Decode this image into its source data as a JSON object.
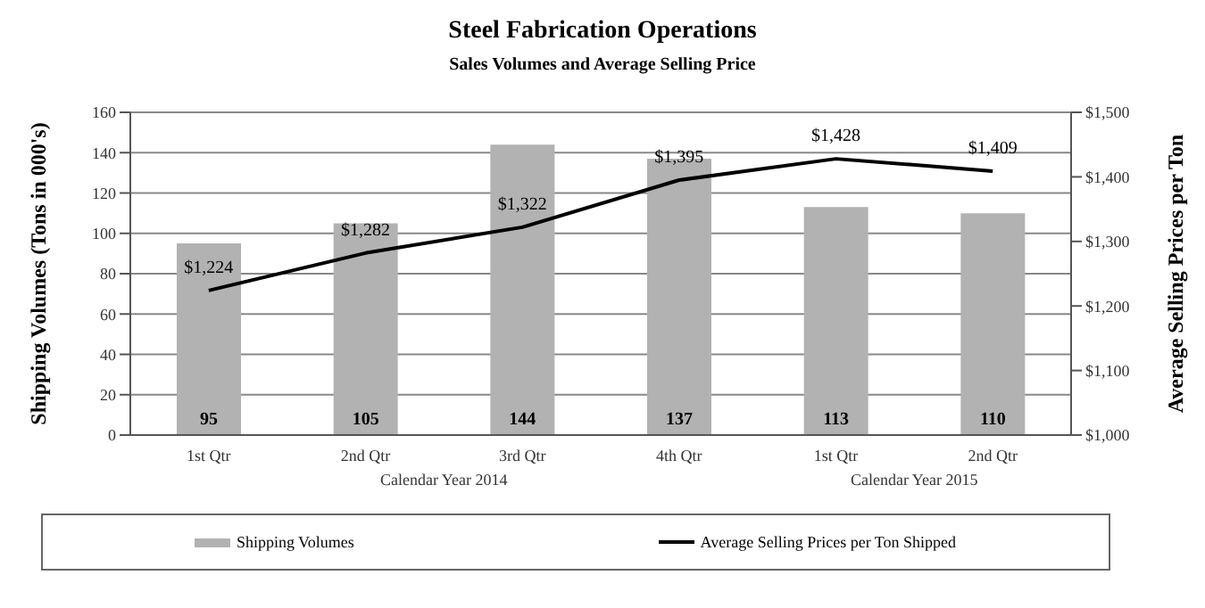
{
  "chart_data": {
    "type": "bar",
    "title": "Steel Fabrication Operations",
    "subtitle": "Sales Volumes and Average Selling Price",
    "ylabel": "Shipping Volumes (Tons in 000's)",
    "y2label": "Average Selling Prices per Ton",
    "categories": [
      "1st Qtr",
      "2nd Qtr",
      "3rd Qtr",
      "4th Qtr",
      "1st Qtr",
      "2nd Qtr"
    ],
    "annotations": [
      "Calendar Year 2014",
      "Calendar Year 2015"
    ],
    "series": [
      {
        "name": "Shipping Volumes",
        "color": "#b2b2b2",
        "values": [
          95,
          105,
          144,
          137,
          113,
          110
        ],
        "value_labels": [
          "95",
          "105",
          "144",
          "137",
          "113",
          "110"
        ]
      },
      {
        "name": "Average Selling Prices per Ton Shipped",
        "type": "line",
        "axis": "y2",
        "color": "#000000",
        "values": [
          1224,
          1282,
          1322,
          1395,
          1428,
          1409
        ],
        "value_labels": [
          "$1,224",
          "$1,282",
          "$1,322",
          "$1,395",
          "$1,428",
          "$1,409"
        ]
      }
    ],
    "ylim": [
      0,
      160
    ],
    "yticks": [
      0,
      20,
      40,
      60,
      80,
      100,
      120,
      140,
      160
    ],
    "y2lim": [
      1000,
      1500
    ],
    "y2ticks": [
      {
        "value": 1000,
        "label": "$1,000"
      },
      {
        "value": 1100,
        "label": "$1,100"
      },
      {
        "value": 1200,
        "label": "$1,200"
      },
      {
        "value": 1300,
        "label": "$1,300"
      },
      {
        "value": 1400,
        "label": "$1,400"
      },
      {
        "value": 1500,
        "label": "$1,500"
      }
    ],
    "grid": "y",
    "legend": "bottom",
    "marker": "none",
    "line_style": "solid"
  }
}
